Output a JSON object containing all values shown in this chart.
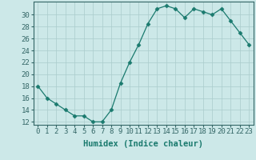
{
  "x": [
    0,
    1,
    2,
    3,
    4,
    5,
    6,
    7,
    8,
    9,
    10,
    11,
    12,
    13,
    14,
    15,
    16,
    17,
    18,
    19,
    20,
    21,
    22,
    23
  ],
  "y": [
    18,
    16,
    15,
    14,
    13,
    13,
    12,
    12,
    14,
    18.5,
    22,
    25,
    28.5,
    31,
    31.5,
    31,
    29.5,
    31,
    30.5,
    30,
    31,
    29,
    27,
    25
  ],
  "line_color": "#1a7a6e",
  "marker": "D",
  "marker_size": 2.5,
  "bg_color": "#cce8e8",
  "grid_color": "#aacccc",
  "xlabel": "Humidex (Indice chaleur)",
  "xlabel_fontsize": 7.5,
  "ylabel_ticks": [
    12,
    14,
    16,
    18,
    20,
    22,
    24,
    26,
    28,
    30
  ],
  "xlim": [
    -0.5,
    23.5
  ],
  "ylim": [
    11.5,
    32.2
  ],
  "tick_fontsize": 6.5,
  "figure_bg": "#cce8e8",
  "axes_bg": "#cce8e8",
  "spine_color": "#336666",
  "tick_color": "#336666"
}
